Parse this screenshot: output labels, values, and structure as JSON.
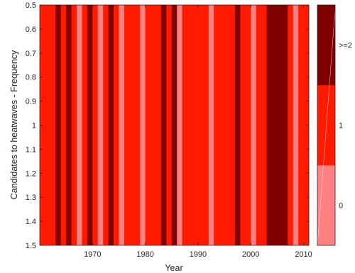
{
  "chart_data": {
    "type": "heatmap",
    "x_data_start": 1960,
    "x_data_end": 2011,
    "xlim": [
      1960,
      2011
    ],
    "ylim": [
      0.5,
      1.5
    ],
    "y_reversed": true,
    "xlabel": "Year",
    "ylabel": "Candidates to heatwaves - Frequency",
    "xticks": [
      1970,
      1980,
      1990,
      2000,
      2010
    ],
    "yticks": [
      0.5,
      0.6,
      0.7,
      0.8,
      0.9,
      1,
      1.1,
      1.2,
      1.3,
      1.4,
      1.5
    ],
    "ytick_labels": [
      "0.5",
      "0.6",
      "0.7",
      "0.8",
      "0.9",
      "1",
      "1.1",
      "1.2",
      "1.3",
      "1.4",
      "1.5"
    ],
    "years": [
      1960,
      1961,
      1962,
      1963,
      1964,
      1965,
      1966,
      1967,
      1968,
      1969,
      1970,
      1971,
      1972,
      1973,
      1974,
      1975,
      1976,
      1977,
      1978,
      1979,
      1980,
      1981,
      1982,
      1983,
      1984,
      1985,
      1986,
      1987,
      1988,
      1989,
      1990,
      1991,
      1992,
      1993,
      1994,
      1995,
      1996,
      1997,
      1998,
      1999,
      2000,
      2001,
      2002,
      2003,
      2004,
      2005,
      2006,
      2007,
      2008,
      2009,
      2010
    ],
    "values": [
      1,
      1,
      1,
      2,
      1,
      2,
      1,
      0,
      1,
      2,
      1,
      0,
      1,
      2,
      1,
      0,
      1,
      1,
      1,
      0,
      1,
      1,
      1,
      2,
      1,
      2,
      0,
      1,
      1,
      1,
      1,
      1,
      0,
      1,
      1,
      1,
      1,
      2,
      1,
      1,
      0,
      1,
      1,
      2,
      2,
      2,
      2,
      1,
      0,
      1,
      1
    ],
    "colorbar": {
      "levels": [
        0,
        1,
        2
      ],
      "labels": [
        "0",
        "1",
        ">=2"
      ],
      "colors": [
        "#ff8080",
        "#ff1a00",
        "#800000"
      ]
    }
  }
}
